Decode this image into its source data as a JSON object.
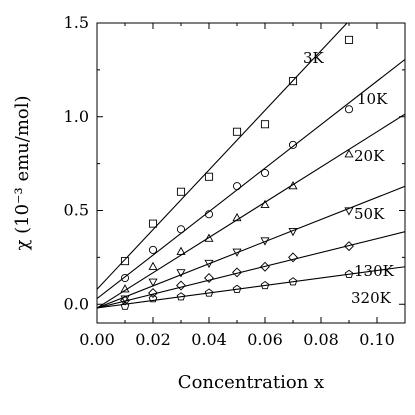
{
  "chart_data": {
    "type": "scatter",
    "title": "",
    "xlabel": "Concentration x",
    "ylabel": "χ (10⁻³ emu/mol)",
    "xlim": [
      0.0,
      0.11
    ],
    "ylim": [
      -0.1,
      1.5
    ],
    "x_ticks": [
      "0.00",
      "0.02",
      "0.04",
      "0.06",
      "0.08",
      "0.10"
    ],
    "x_tick_values": [
      0.0,
      0.02,
      0.04,
      0.06,
      0.08,
      0.1
    ],
    "y_ticks": [
      "0.0",
      "0.5",
      "1.0",
      "1.5"
    ],
    "y_tick_values": [
      0.0,
      0.5,
      1.0,
      1.5
    ],
    "grid": false,
    "fit_lines": true,
    "series": [
      {
        "name": "3K",
        "marker": "square",
        "x": [
          0.01,
          0.02,
          0.03,
          0.04,
          0.05,
          0.06,
          0.07,
          0.09
        ],
        "y": [
          0.23,
          0.43,
          0.6,
          0.68,
          0.92,
          0.96,
          1.19,
          1.41
        ],
        "fit": [
          0.08,
          15.9
        ]
      },
      {
        "name": "10K",
        "marker": "circle",
        "x": [
          0.01,
          0.02,
          0.03,
          0.04,
          0.05,
          0.06,
          0.07,
          0.09
        ],
        "y": [
          0.14,
          0.29,
          0.4,
          0.48,
          0.63,
          0.7,
          0.85,
          1.04
        ],
        "fit": [
          0.03,
          11.6
        ]
      },
      {
        "name": "20K",
        "marker": "triangle-up",
        "x": [
          0.01,
          0.02,
          0.03,
          0.04,
          0.05,
          0.06,
          0.07,
          0.09
        ],
        "y": [
          0.08,
          0.2,
          0.28,
          0.35,
          0.46,
          0.53,
          0.63,
          0.8
        ],
        "fit": [
          -0.02,
          9.4
        ]
      },
      {
        "name": "50K",
        "marker": "triangle-down",
        "x": [
          0.01,
          0.02,
          0.03,
          0.04,
          0.05,
          0.06,
          0.07,
          0.09
        ],
        "y": [
          0.03,
          0.12,
          0.17,
          0.22,
          0.28,
          0.34,
          0.39,
          0.5
        ],
        "fit": [
          -0.02,
          5.9
        ]
      },
      {
        "name": "130K",
        "marker": "diamond",
        "x": [
          0.01,
          0.02,
          0.03,
          0.04,
          0.05,
          0.06,
          0.07,
          0.09
        ],
        "y": [
          0.02,
          0.06,
          0.1,
          0.14,
          0.17,
          0.2,
          0.25,
          0.31
        ],
        "fit": [
          -0.02,
          3.7
        ]
      },
      {
        "name": "320K",
        "marker": "pentagon",
        "x": [
          0.01,
          0.02,
          0.03,
          0.04,
          0.05,
          0.06,
          0.07,
          0.09
        ],
        "y": [
          -0.01,
          0.03,
          0.04,
          0.06,
          0.08,
          0.1,
          0.12,
          0.16
        ],
        "fit": [
          -0.02,
          2.0
        ]
      }
    ]
  }
}
